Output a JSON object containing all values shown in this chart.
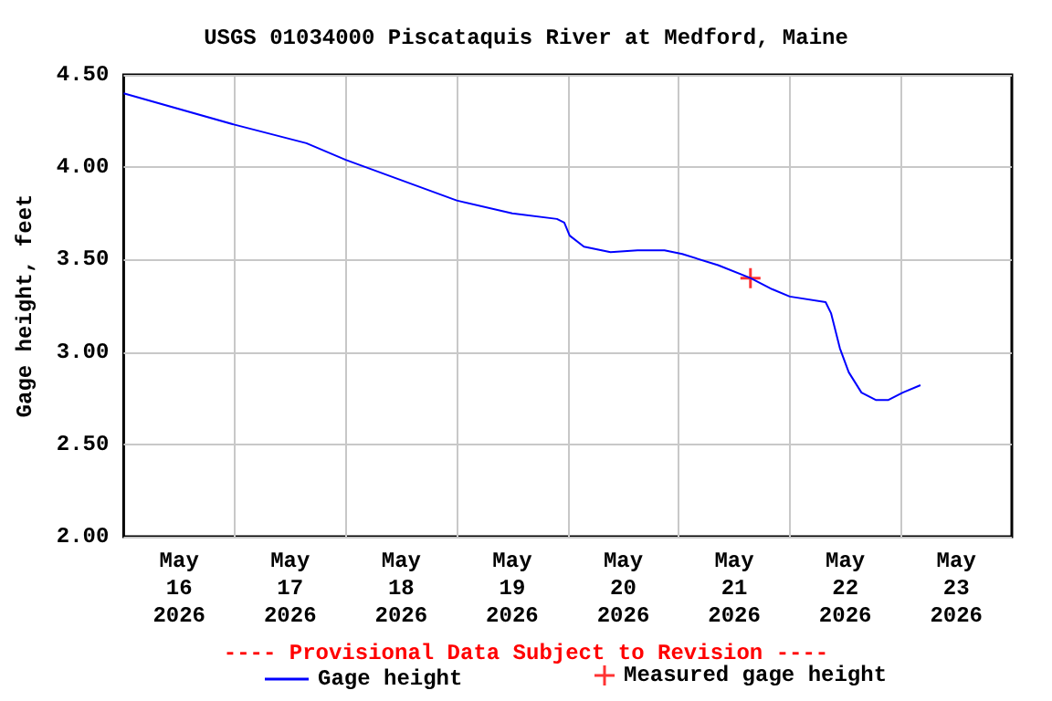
{
  "chart_data": {
    "type": "line",
    "title": "USGS 01034000 Piscataquis River at Medford, Maine",
    "ylabel": "Gage height, feet",
    "annotations": [
      "---- Provisional Data Subject to Revision ----"
    ],
    "xlim": [
      "2026-05-16T00:00",
      "2026-05-24T00:00"
    ],
    "xticks": [
      {
        "value": "2026-05-16T12:00",
        "label": "May\n16\n2026"
      },
      {
        "value": "2026-05-17T12:00",
        "label": "May\n17\n2026"
      },
      {
        "value": "2026-05-18T12:00",
        "label": "May\n18\n2026"
      },
      {
        "value": "2026-05-19T12:00",
        "label": "May\n19\n2026"
      },
      {
        "value": "2026-05-20T12:00",
        "label": "May\n20\n2026"
      },
      {
        "value": "2026-05-21T12:00",
        "label": "May\n21\n2026"
      },
      {
        "value": "2026-05-22T12:00",
        "label": "May\n22\n2026"
      },
      {
        "value": "2026-05-23T12:00",
        "label": "May\n23\n2026"
      },
      {
        "value": "2026-05-17T00:00",
        "label": null
      },
      {
        "value": "2026-05-18T00:00",
        "label": null
      },
      {
        "value": "2026-05-19T00:00",
        "label": null
      },
      {
        "value": "2026-05-20T00:00",
        "label": null
      },
      {
        "value": "2026-05-21T00:00",
        "label": null
      },
      {
        "value": "2026-05-22T00:00",
        "label": null
      },
      {
        "value": "2026-05-23T00:00",
        "label": null
      }
    ],
    "ylim": [
      2,
      4.5
    ],
    "yticks": [
      {
        "value": 2,
        "label": "2.00"
      },
      {
        "value": 2.5,
        "label": "2.50"
      },
      {
        "value": 3,
        "label": "3.00"
      },
      {
        "value": 3.5,
        "label": "3.50"
      },
      {
        "value": 4,
        "label": "4.00"
      },
      {
        "value": 4.5,
        "label": "4.50"
      }
    ],
    "grid": true,
    "legend": "bottom",
    "series": [
      {
        "name": "Gage height",
        "color": "#0000ff",
        "marker": "none",
        "line_style": "solid",
        "x": [
          "2026-05-16T00:00",
          "2026-05-17T00:00",
          "2026-05-17T15:30",
          "2026-05-18T00:00",
          "2026-05-19T00:00",
          "2026-05-19T12:00",
          "2026-05-19T21:40",
          "2026-05-19T23:15",
          "2026-05-20T00:25",
          "2026-05-20T03:30",
          "2026-05-20T09:15",
          "2026-05-20T15:05",
          "2026-05-20T20:55",
          "2026-05-21T00:45",
          "2026-05-21T08:30",
          "2026-05-21T15:30",
          "2026-05-21T20:10",
          "2026-05-22T00:00",
          "2026-05-22T07:45",
          "2026-05-22T08:55",
          "2026-05-22T10:50",
          "2026-05-22T12:45",
          "2026-05-22T15:30",
          "2026-05-22T18:35",
          "2026-05-22T21:20",
          "2026-05-23T00:25",
          "2026-05-23T04:15"
        ],
        "values": [
          4.4,
          4.23,
          4.13,
          4.04,
          3.82,
          3.75,
          3.72,
          3.7,
          3.63,
          3.57,
          3.54,
          3.55,
          3.55,
          3.53,
          3.47,
          3.4,
          3.34,
          3.3,
          3.27,
          3.21,
          3.02,
          2.89,
          2.78,
          2.74,
          2.74,
          2.78,
          2.82
        ]
      },
      {
        "name": "Measured gage height",
        "type": "scatter",
        "color": "#ff0000",
        "marker": "cross",
        "x": [
          "2026-05-21T15:30"
        ],
        "values": [
          3.4
        ]
      }
    ]
  }
}
